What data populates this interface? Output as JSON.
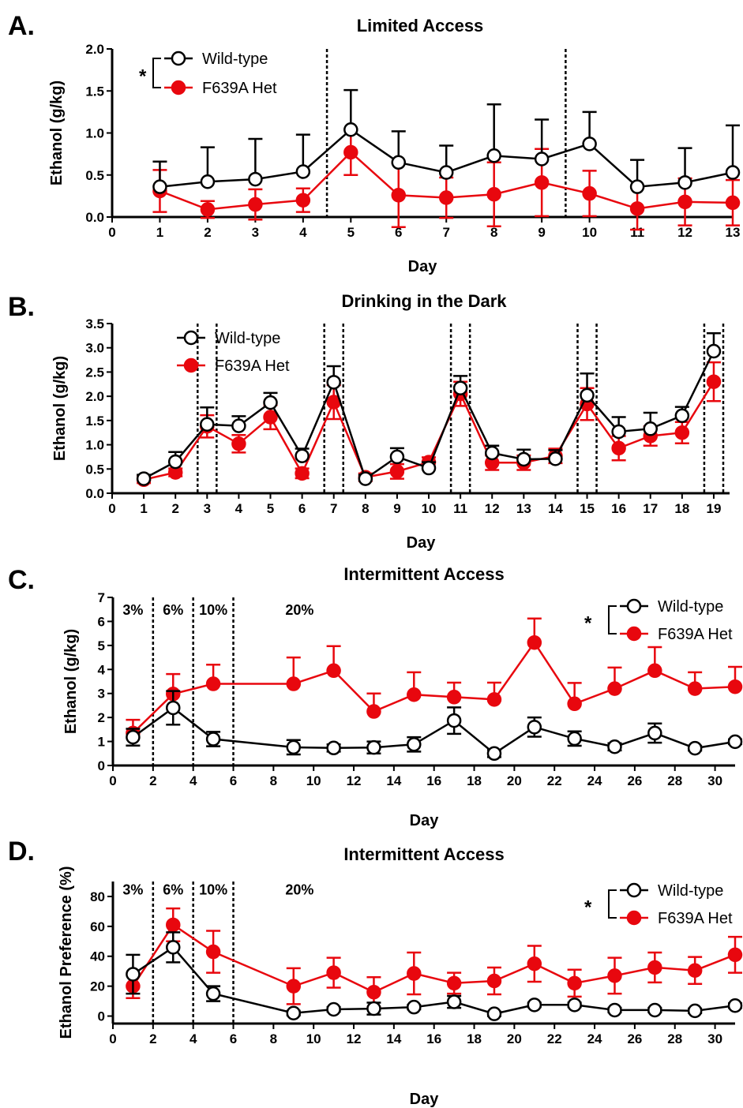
{
  "chart_data": [
    {
      "panel_letter": "A.",
      "type": "line",
      "title": "Limited Access",
      "xlabel": "Day",
      "ylabel": "Ethanol (g/kg)",
      "xlim": [
        0,
        13
      ],
      "ylim": [
        0,
        2
      ],
      "xticks": [
        0,
        1,
        2,
        3,
        4,
        5,
        6,
        7,
        8,
        9,
        10,
        11,
        12,
        13
      ],
      "yticks": [
        0.0,
        0.5,
        1.0,
        1.5,
        2.0
      ],
      "ytick_labels": [
        "0.0",
        "0.5",
        "1.0",
        "1.5",
        "2.0"
      ],
      "dividers": [
        4.5,
        9.5
      ],
      "segment_labels": [],
      "significance": "*",
      "legend_position": "top-left",
      "series": [
        {
          "name": "Wild-type",
          "color": "#000000",
          "marker": "open-circle",
          "error_dir": "up",
          "x": [
            1,
            2,
            3,
            4,
            5,
            6,
            7,
            8,
            9,
            10,
            11,
            12,
            13
          ],
          "values": [
            0.36,
            0.42,
            0.45,
            0.54,
            1.04,
            0.65,
            0.53,
            0.73,
            0.69,
            0.87,
            0.36,
            0.41,
            0.53
          ],
          "errors": [
            0.3,
            0.41,
            0.48,
            0.44,
            0.47,
            0.37,
            0.32,
            0.61,
            0.47,
            0.38,
            0.32,
            0.41,
            0.56
          ]
        },
        {
          "name": "F639A Het",
          "color": "#e8070e",
          "marker": "filled-circle",
          "error_dir": "both",
          "x": [
            1,
            2,
            3,
            4,
            5,
            6,
            7,
            8,
            9,
            10,
            11,
            12,
            13
          ],
          "values": [
            0.31,
            0.09,
            0.15,
            0.2,
            0.77,
            0.26,
            0.23,
            0.27,
            0.41,
            0.28,
            0.1,
            0.18,
            0.17
          ],
          "errors": [
            0.25,
            0.1,
            0.18,
            0.14,
            0.27,
            0.38,
            0.24,
            0.38,
            0.4,
            0.27,
            0.25,
            0.28,
            0.27
          ]
        }
      ]
    },
    {
      "panel_letter": "B.",
      "type": "line",
      "title": "Drinking in the Dark",
      "xlabel": "Day",
      "ylabel": "Ethanol (g/kg)",
      "xlim": [
        0,
        19.5
      ],
      "ylim": [
        0,
        3.5
      ],
      "xticks": [
        0,
        1,
        2,
        3,
        4,
        5,
        6,
        7,
        8,
        9,
        10,
        11,
        12,
        13,
        14,
        15,
        16,
        17,
        18,
        19
      ],
      "yticks": [
        0.0,
        0.5,
        1.0,
        1.5,
        2.0,
        2.5,
        3.0,
        3.5
      ],
      "ytick_labels": [
        "0.0",
        "0.5",
        "1.0",
        "1.5",
        "2.0",
        "2.5",
        "3.0",
        "3.5"
      ],
      "dividers": [
        2.7,
        3.3,
        6.7,
        7.3,
        10.7,
        11.3,
        14.7,
        15.3,
        18.7,
        19.3
      ],
      "segment_labels": [],
      "significance": "",
      "legend_position": "top-left",
      "series": [
        {
          "name": "Wild-type",
          "color": "#000000",
          "marker": "open-circle",
          "error_dir": "up",
          "x": [
            1,
            2,
            3,
            4,
            5,
            6,
            7,
            8,
            9,
            10,
            11,
            12,
            13,
            14,
            15,
            16,
            17,
            18,
            19
          ],
          "values": [
            0.3,
            0.65,
            1.42,
            1.39,
            1.87,
            0.77,
            2.29,
            0.3,
            0.75,
            0.52,
            2.17,
            0.83,
            0.7,
            0.71,
            2.02,
            1.27,
            1.33,
            1.6,
            2.93
          ],
          "errors": [
            0.08,
            0.2,
            0.35,
            0.2,
            0.2,
            0.15,
            0.33,
            0.08,
            0.18,
            0.12,
            0.25,
            0.15,
            0.2,
            0.18,
            0.45,
            0.3,
            0.33,
            0.18,
            0.37
          ]
        },
        {
          "name": "F639A Het",
          "color": "#e8070e",
          "marker": "filled-circle",
          "error_dir": "both",
          "x": [
            1,
            2,
            3,
            4,
            5,
            6,
            7,
            8,
            9,
            10,
            11,
            12,
            13,
            14,
            15,
            16,
            17,
            18,
            19
          ],
          "values": [
            0.28,
            0.43,
            1.38,
            1.02,
            1.57,
            0.41,
            1.88,
            0.33,
            0.45,
            0.64,
            2.05,
            0.63,
            0.63,
            0.77,
            1.84,
            0.93,
            1.18,
            1.25,
            2.3
          ],
          "errors": [
            0.07,
            0.08,
            0.23,
            0.18,
            0.25,
            0.1,
            0.35,
            0.08,
            0.15,
            0.1,
            0.25,
            0.15,
            0.15,
            0.15,
            0.33,
            0.25,
            0.2,
            0.22,
            0.4
          ]
        }
      ]
    },
    {
      "panel_letter": "C.",
      "type": "line",
      "title": "Intermittent Access",
      "xlabel": "Day",
      "ylabel": "Ethanol (g/kg)",
      "xlim": [
        0,
        31
      ],
      "ylim": [
        0,
        7
      ],
      "xticks": [
        0,
        2,
        4,
        6,
        8,
        10,
        12,
        14,
        16,
        18,
        20,
        22,
        24,
        26,
        28,
        30
      ],
      "yticks": [
        0,
        1,
        2,
        3,
        4,
        5,
        6,
        7
      ],
      "ytick_labels": [
        "0",
        "1",
        "2",
        "3",
        "4",
        "5",
        "6",
        "7"
      ],
      "dividers": [
        2,
        4,
        6
      ],
      "segment_labels": [
        {
          "text": "3%",
          "x": 1,
          "y": 6.5
        },
        {
          "text": "6%",
          "x": 3,
          "y": 6.5
        },
        {
          "text": "10%",
          "x": 5,
          "y": 6.5
        },
        {
          "text": "20%",
          "x": 9.3,
          "y": 6.5
        }
      ],
      "significance": "*",
      "legend_position": "top-right",
      "series": [
        {
          "name": "Wild-type",
          "color": "#000000",
          "marker": "open-circle",
          "error_dir": "both",
          "x": [
            1,
            3,
            5,
            9,
            11,
            13,
            15,
            17,
            19,
            21,
            23,
            25,
            27,
            29,
            31
          ],
          "values": [
            1.18,
            2.4,
            1.1,
            0.76,
            0.73,
            0.75,
            0.88,
            1.87,
            0.5,
            1.6,
            1.12,
            0.78,
            1.35,
            0.72,
            0.99
          ],
          "errors": [
            0.35,
            0.7,
            0.3,
            0.3,
            0.15,
            0.25,
            0.3,
            0.55,
            0.15,
            0.4,
            0.3,
            0.15,
            0.4,
            0.1,
            0.1
          ]
        },
        {
          "name": "F639A Het",
          "color": "#e8070e",
          "marker": "filled-circle",
          "error_dir": "up",
          "x": [
            1,
            3,
            5,
            9,
            11,
            13,
            15,
            17,
            19,
            21,
            23,
            25,
            27,
            29,
            31
          ],
          "values": [
            1.35,
            2.98,
            3.4,
            3.4,
            3.95,
            2.25,
            2.95,
            2.85,
            2.75,
            5.12,
            2.57,
            3.2,
            3.95,
            3.2,
            3.28
          ],
          "errors": [
            0.55,
            0.83,
            0.8,
            1.1,
            1.02,
            0.75,
            0.93,
            0.6,
            0.7,
            1.0,
            0.87,
            0.88,
            0.98,
            0.68,
            0.83
          ]
        }
      ]
    },
    {
      "panel_letter": "D.",
      "type": "line",
      "title": "Intermittent Access",
      "xlabel": "Day",
      "ylabel": "Ethanol Preference (%)",
      "xlim": [
        0,
        31
      ],
      "ylim": [
        -5,
        90
      ],
      "xticks": [
        0,
        2,
        4,
        6,
        8,
        10,
        12,
        14,
        16,
        18,
        20,
        22,
        24,
        26,
        28,
        30
      ],
      "yticks": [
        0,
        20,
        40,
        60,
        80
      ],
      "ytick_labels": [
        "0",
        "20",
        "40",
        "60",
        "80"
      ],
      "dividers": [
        2,
        4,
        6
      ],
      "segment_labels": [
        {
          "text": "3%",
          "x": 1,
          "y": 85
        },
        {
          "text": "6%",
          "x": 3,
          "y": 85
        },
        {
          "text": "10%",
          "x": 5,
          "y": 85
        },
        {
          "text": "20%",
          "x": 9.3,
          "y": 85
        }
      ],
      "significance": "*",
      "legend_position": "top-right",
      "series": [
        {
          "name": "Wild-type",
          "color": "#000000",
          "marker": "open-circle",
          "error_dir": "both",
          "x": [
            1,
            3,
            5,
            9,
            11,
            13,
            15,
            17,
            19,
            21,
            23,
            25,
            27,
            29,
            31
          ],
          "values": [
            28,
            46,
            15,
            2,
            4.5,
            5,
            6,
            9.5,
            1.5,
            7.5,
            7.5,
            4,
            4,
            3.5,
            7
          ],
          "errors": [
            13,
            10,
            5,
            1.5,
            1.5,
            4,
            1.5,
            4,
            1.5,
            1.5,
            1.5,
            1.5,
            1.5,
            1.5,
            1.5
          ]
        },
        {
          "name": "F639A Het",
          "color": "#e8070e",
          "marker": "filled-circle",
          "error_dir": "both",
          "x": [
            1,
            3,
            5,
            9,
            11,
            13,
            15,
            17,
            19,
            21,
            23,
            25,
            27,
            29,
            31
          ],
          "values": [
            20,
            61,
            43,
            20,
            29,
            16,
            28.5,
            22,
            23.5,
            35,
            22,
            27,
            32.5,
            30.5,
            41
          ],
          "errors": [
            8,
            11,
            14,
            12,
            10,
            10,
            14,
            7,
            9,
            12,
            9,
            12,
            10,
            9,
            12
          ]
        }
      ]
    }
  ]
}
